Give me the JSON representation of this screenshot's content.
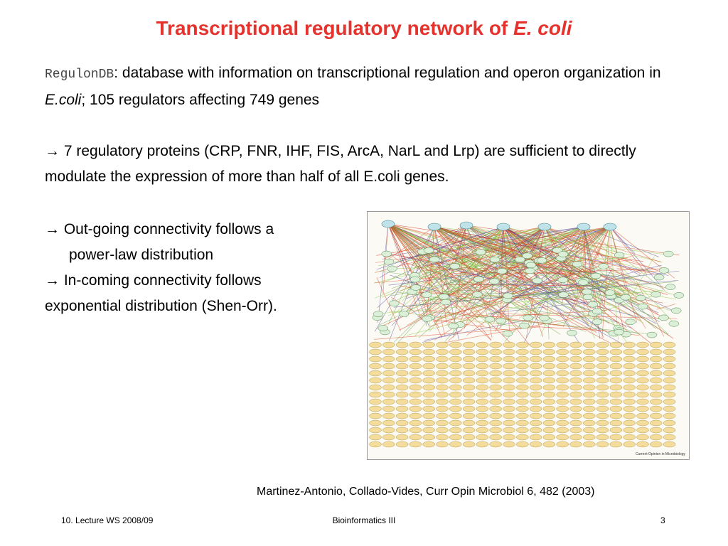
{
  "title": {
    "text": "Transcriptional regulatory network of ",
    "italic": "E. coli"
  },
  "intro": {
    "db": "RegulonDB",
    "text1": ": database with information on transcriptional regulation and operon organization in ",
    "italic": "E.coli",
    "text2": "; 105 regulators affecting 749 genes"
  },
  "claim": "→ 7 regulatory proteins (CRP, FNR, IHF, FIS, ArcA, NarL and Lrp) are sufficient to directly modulate the expression of more than half of all E.coli genes.",
  "bullets": [
    "→ Out-going connectivity follows a",
    "power-law distribution",
    "→ In-coming connectivity follows",
    "exponential distribution (Shen-Orr)."
  ],
  "figure": {
    "credit": "Current Opinion in Microbiology"
  },
  "citation": "Martinez-Antonio, Collado-Vides, Curr Opin Microbiol 6, 482 (2003)",
  "footer": {
    "left": "10. Lecture WS 2008/09",
    "center": "Bioinformatics III",
    "right": "3"
  }
}
